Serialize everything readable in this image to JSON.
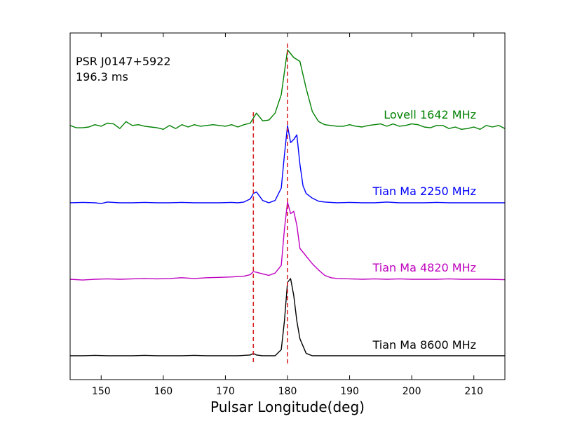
{
  "chart_data": {
    "type": "line",
    "title": "",
    "xlabel": "Pulsar Longitude(deg)",
    "ylabel": "",
    "xlim": [
      145,
      215
    ],
    "xticks": [
      150,
      160,
      170,
      180,
      190,
      200,
      210
    ],
    "annotation": [
      "PSR J0147+5922",
      "196.3 ms"
    ],
    "vlines": [
      {
        "x": 174.5,
        "color": "#d62728",
        "style": "dashed"
      },
      {
        "x": 180.0,
        "color": "#d62728",
        "style": "dashed"
      }
    ],
    "series": [
      {
        "name": "Lovell 1642 MHz",
        "color": "#008000",
        "offset": 3,
        "x": [
          145,
          146,
          147,
          148,
          149,
          150,
          151,
          152,
          153,
          154,
          155,
          156,
          157,
          158,
          159,
          160,
          161,
          162,
          163,
          164,
          165,
          166,
          167,
          168,
          169,
          170,
          171,
          172,
          173,
          174,
          175,
          176,
          177,
          178,
          179,
          180,
          181,
          182,
          183,
          184,
          185,
          186,
          187,
          188,
          189,
          190,
          191,
          192,
          193,
          194,
          195,
          196,
          197,
          198,
          199,
          200,
          201,
          202,
          203,
          204,
          205,
          206,
          207,
          208,
          209,
          210,
          211,
          212,
          213,
          214,
          215
        ],
        "y": [
          0.02,
          -0.01,
          -0.01,
          0.0,
          0.03,
          0.01,
          0.05,
          0.04,
          -0.02,
          0.07,
          0.02,
          0.03,
          0.01,
          0.0,
          -0.01,
          -0.03,
          0.02,
          -0.02,
          0.03,
          0.0,
          0.03,
          0.01,
          0.02,
          0.03,
          0.02,
          0.01,
          0.03,
          0.0,
          0.03,
          0.05,
          0.18,
          0.08,
          0.09,
          0.18,
          0.42,
          1.0,
          0.9,
          0.85,
          0.5,
          0.2,
          0.07,
          0.03,
          0.02,
          0.01,
          0.01,
          0.03,
          0.01,
          0.0,
          0.02,
          0.03,
          0.04,
          0.01,
          0.04,
          0.01,
          0.02,
          0.04,
          0.03,
          0.0,
          -0.01,
          0.02,
          0.02,
          -0.02,
          0.0,
          -0.03,
          -0.02,
          0.0,
          -0.03,
          0.02,
          0.0,
          0.02,
          -0.02
        ]
      },
      {
        "name": "Tian Ma 2250 MHz",
        "color": "#0000ff",
        "offset": 2,
        "x": [
          145,
          147,
          149,
          150,
          151,
          153,
          155,
          157,
          159,
          161,
          163,
          165,
          167,
          169,
          171,
          172,
          173,
          174,
          174.5,
          175,
          176,
          177,
          178,
          179,
          179.5,
          180,
          180.5,
          181,
          181.5,
          182,
          182.5,
          183,
          184,
          185,
          186,
          188,
          190,
          192,
          194,
          196,
          198,
          200,
          202,
          204,
          206,
          208,
          210,
          212,
          215
        ],
        "y": [
          0.0,
          0.005,
          0.0,
          -0.01,
          0.01,
          0.0,
          0.0,
          0.005,
          0.0,
          0.0,
          0.005,
          0.0,
          0.0,
          0.0,
          0.005,
          0.0,
          0.01,
          0.05,
          0.12,
          0.14,
          0.03,
          0.0,
          0.03,
          0.19,
          0.62,
          1.0,
          0.78,
          0.82,
          0.88,
          0.5,
          0.22,
          0.12,
          0.06,
          0.02,
          0.01,
          0.0,
          0.005,
          0.0,
          0.0,
          0.01,
          0.0,
          0.0,
          0.0,
          0.005,
          0.0,
          0.0,
          0.0,
          0.0,
          0.0
        ]
      },
      {
        "name": "Tian Ma 4820 MHz",
        "color": "#bf00bf",
        "offset": 1,
        "x": [
          145,
          147,
          149,
          151,
          153,
          155,
          157,
          159,
          161,
          163,
          165,
          167,
          169,
          171,
          173,
          174,
          174.5,
          175,
          176,
          177,
          178,
          179,
          179.5,
          180,
          180.5,
          181,
          181.5,
          182,
          183,
          184,
          185,
          186,
          187,
          188,
          190,
          192,
          194,
          196,
          198,
          200,
          202,
          204,
          206,
          208,
          210,
          212,
          215
        ],
        "y": [
          0.0,
          -0.01,
          0.0,
          0.005,
          0.0,
          0.005,
          0.01,
          0.005,
          0.01,
          0.02,
          0.01,
          0.02,
          0.025,
          0.03,
          0.04,
          0.06,
          0.1,
          0.09,
          0.07,
          0.05,
          0.08,
          0.18,
          0.65,
          1.0,
          0.85,
          0.88,
          0.7,
          0.4,
          0.3,
          0.2,
          0.12,
          0.05,
          0.02,
          0.01,
          0.005,
          0.0,
          0.005,
          0.0,
          0.005,
          0.0,
          0.0,
          0.0,
          0.005,
          0.0,
          0.0,
          0.0,
          -0.005
        ]
      },
      {
        "name": "Tian Ma 8600 MHz",
        "color": "#000000",
        "offset": 0,
        "x": [
          145,
          147,
          149,
          151,
          153,
          155,
          157,
          159,
          161,
          163,
          165,
          167,
          169,
          171,
          172,
          173,
          174,
          174.5,
          175,
          176,
          177,
          178,
          179,
          179.5,
          180,
          180.5,
          181,
          181.5,
          182,
          183,
          184,
          186,
          188,
          190,
          192,
          194,
          196,
          198,
          200,
          202,
          204,
          206,
          208,
          210,
          212,
          215
        ],
        "y": [
          0.0,
          0.0,
          0.005,
          0.0,
          0.0,
          0.0,
          0.005,
          0.0,
          0.0,
          0.0,
          0.005,
          0.0,
          0.0,
          0.0,
          0.0,
          0.005,
          0.01,
          0.03,
          0.01,
          0.0,
          0.0,
          0.0,
          0.08,
          0.45,
          0.95,
          1.0,
          0.78,
          0.45,
          0.22,
          0.03,
          0.0,
          0.0,
          0.0,
          0.0,
          0.0,
          0.0,
          0.0,
          0.0,
          0.0,
          0.0,
          0.0,
          0.0,
          0.0,
          0.0,
          0.0,
          0.0
        ]
      }
    ]
  }
}
